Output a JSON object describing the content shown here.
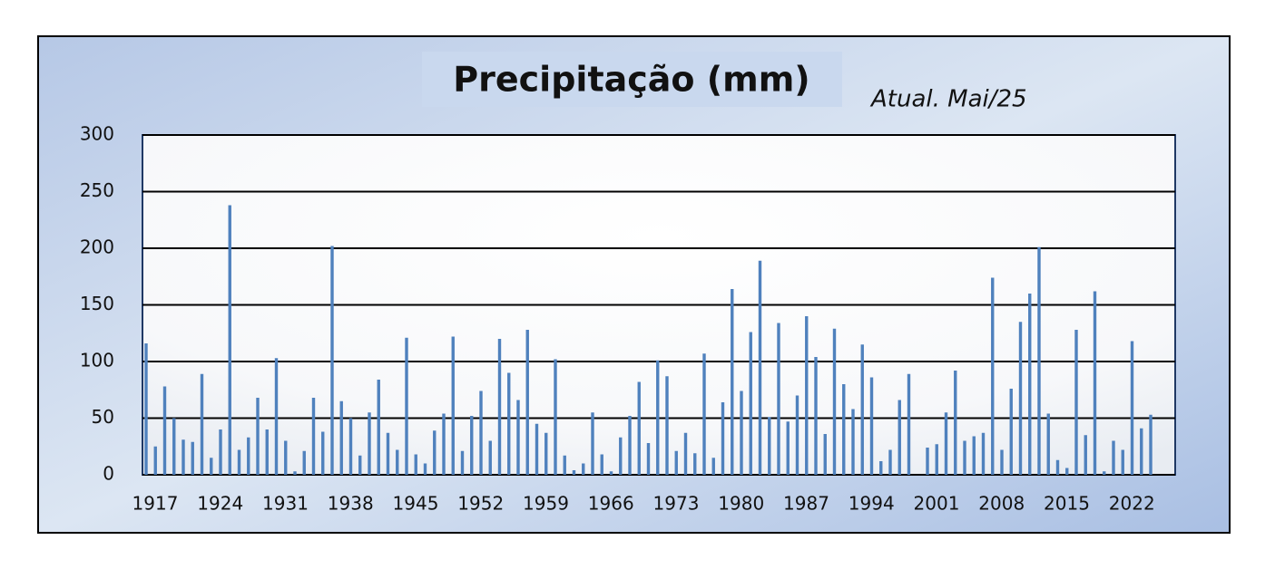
{
  "chart_data": {
    "type": "bar",
    "title": "Precipitação (mm)",
    "annotation": "Atual. Mai/25",
    "categories": [
      "1917",
      null,
      null,
      null,
      null,
      null,
      null,
      "1924",
      null,
      null,
      null,
      null,
      null,
      null,
      "1931",
      null,
      null,
      null,
      null,
      null,
      null,
      "1938",
      null,
      null,
      null,
      null,
      null,
      null,
      "1945",
      null,
      null,
      null,
      null,
      null,
      null,
      "1952",
      null,
      null,
      null,
      null,
      null,
      null,
      "1959",
      null,
      null,
      null,
      null,
      null,
      null,
      "1966",
      null,
      null,
      null,
      null,
      null,
      null,
      "1973",
      null,
      null,
      null,
      null,
      null,
      null,
      "1980",
      null,
      null,
      null,
      null,
      null,
      null,
      "1987",
      null,
      null,
      null,
      null,
      null,
      null,
      "1994",
      null,
      null,
      null,
      null,
      null,
      null,
      "2001",
      null,
      null,
      null,
      null,
      null,
      null,
      "2008",
      null,
      null,
      null,
      null,
      null,
      null,
      "2015",
      null,
      null,
      null,
      null,
      null,
      null,
      "2022",
      null,
      null,
      null
    ],
    "values": [
      116,
      25,
      78,
      50,
      31,
      29,
      89,
      15,
      40,
      238,
      22,
      33,
      68,
      40,
      103,
      30,
      3,
      21,
      68,
      38,
      202,
      65,
      50,
      17,
      55,
      84,
      37,
      22,
      121,
      18,
      10,
      39,
      54,
      122,
      21,
      52,
      74,
      30,
      120,
      90,
      66,
      128,
      45,
      37,
      102,
      17,
      4,
      10,
      55,
      18,
      3,
      33,
      52,
      82,
      28,
      101,
      87,
      21,
      37,
      19,
      107,
      15,
      64,
      164,
      74,
      126,
      189,
      51,
      134,
      47,
      70,
      140,
      104,
      36,
      129,
      80,
      58,
      115,
      86,
      12,
      22,
      66,
      89,
      0,
      24,
      27,
      55,
      92,
      30,
      34,
      37,
      174,
      22,
      76,
      135,
      160,
      201,
      54,
      13,
      6,
      128,
      35,
      162,
      3,
      30,
      22,
      118,
      41,
      53
    ],
    "color": "#4f81bd",
    "ylim": [
      0,
      300
    ],
    "yticks": [
      0,
      50,
      100,
      150,
      200,
      250,
      300
    ],
    "grid": true
  }
}
